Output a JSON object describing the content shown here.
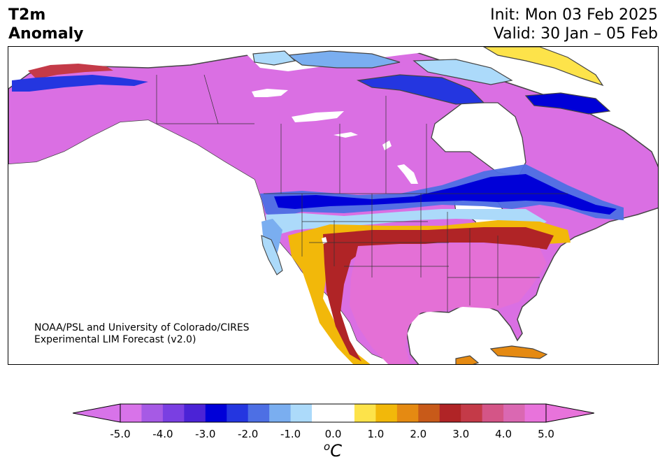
{
  "title": {
    "line1": "T2m",
    "line2": "Anomaly"
  },
  "dates": {
    "init": "Init: Mon 03 Feb 2025",
    "valid": "Valid: 30 Jan – 05 Feb"
  },
  "credit": {
    "line1": "NOAA/PSL and University of Colorado/CIRES",
    "line2": "Experimental LIM Forecast (v2.0)"
  },
  "colorbar": {
    "units_symbol": "o",
    "units_letter": "C",
    "ticks": [
      "-5.0",
      "-4.0",
      "-3.0",
      "-2.0",
      "-1.0",
      "0.0",
      "1.0",
      "2.0",
      "3.0",
      "4.0",
      "5.0"
    ],
    "colors": [
      "#d873e9",
      "#a65ae5",
      "#7a3fe2",
      "#4b23d6",
      "#0000d8",
      "#2436e0",
      "#4d6fe4",
      "#7aaef0",
      "#acdafa",
      "#ffffff",
      "#ffffff",
      "#fde34a",
      "#f2b80a",
      "#e58a12",
      "#c85a19",
      "#b02426",
      "#c43a48",
      "#d45587",
      "#da68b2",
      "#e873db"
    ],
    "under_color": "#d873e9",
    "over_color": "#e873db"
  }
}
